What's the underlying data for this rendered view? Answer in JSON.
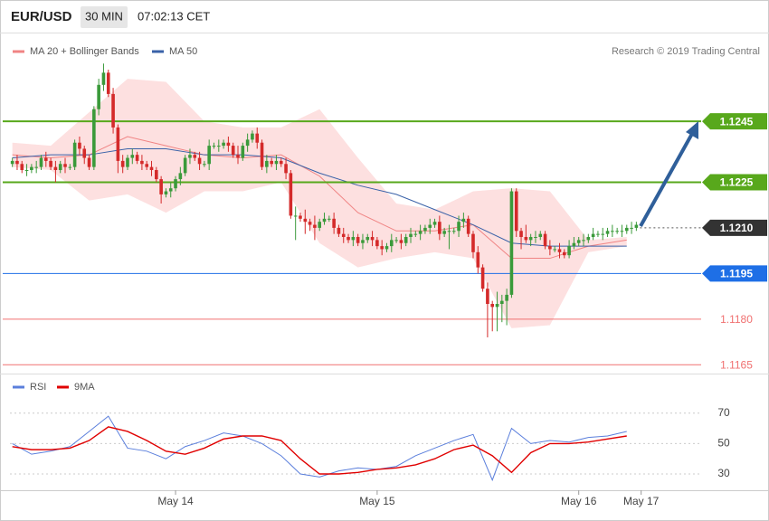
{
  "header": {
    "symbol": "EUR/USD",
    "interval": "30 MIN",
    "time": "07:02:13 CET"
  },
  "credit": "Research © 2019 Trading Central",
  "chart_data": [
    {
      "type": "candlestick",
      "xlim": [
        -0.5,
        143.5
      ],
      "ylim": [
        1.1163,
        1.1273
      ],
      "up_color": "#3a9a3a",
      "down_color": "#d42a2a",
      "ohlc": [
        [
          1.1231,
          1.1233,
          1.123,
          1.1232
        ],
        [
          1.1232,
          1.1234,
          1.1229,
          1.1231
        ],
        [
          1.1231,
          1.1232,
          1.1228,
          1.1229
        ],
        [
          1.1229,
          1.1231,
          1.1227,
          1.1229
        ],
        [
          1.1229,
          1.1231,
          1.1228,
          1.123
        ],
        [
          1.123,
          1.1232,
          1.1228,
          1.123
        ],
        [
          1.123,
          1.1234,
          1.1229,
          1.1233
        ],
        [
          1.1233,
          1.1235,
          1.123,
          1.1232
        ],
        [
          1.1232,
          1.1233,
          1.1229,
          1.123
        ],
        [
          1.123,
          1.1232,
          1.1225,
          1.1229
        ],
        [
          1.1229,
          1.1232,
          1.1228,
          1.1231
        ],
        [
          1.1231,
          1.1233,
          1.1228,
          1.123
        ],
        [
          1.123,
          1.1231,
          1.1229,
          1.123
        ],
        [
          1.123,
          1.1239,
          1.1229,
          1.1238
        ],
        [
          1.1238,
          1.124,
          1.1234,
          1.1236
        ],
        [
          1.1236,
          1.1237,
          1.1231,
          1.1233
        ],
        [
          1.1233,
          1.1234,
          1.1229,
          1.123
        ],
        [
          1.123,
          1.125,
          1.1229,
          1.1249
        ],
        [
          1.1249,
          1.1259,
          1.1247,
          1.1257
        ],
        [
          1.1257,
          1.1264,
          1.1255,
          1.1261
        ],
        [
          1.1261,
          1.1262,
          1.1253,
          1.1254
        ],
        [
          1.1254,
          1.1256,
          1.1241,
          1.1243
        ],
        [
          1.1243,
          1.1244,
          1.1228,
          1.1232
        ],
        [
          1.1232,
          1.1234,
          1.1228,
          1.123
        ],
        [
          1.123,
          1.1234,
          1.1229,
          1.1233
        ],
        [
          1.1233,
          1.1236,
          1.1231,
          1.1234
        ],
        [
          1.1234,
          1.1235,
          1.1231,
          1.1232
        ],
        [
          1.1232,
          1.1234,
          1.1229,
          1.1231
        ],
        [
          1.1231,
          1.1232,
          1.1229,
          1.123
        ],
        [
          1.123,
          1.1232,
          1.1227,
          1.1229
        ],
        [
          1.1229,
          1.123,
          1.1225,
          1.1226
        ],
        [
          1.1226,
          1.1227,
          1.1218,
          1.1221
        ],
        [
          1.1221,
          1.1223,
          1.122,
          1.1222
        ],
        [
          1.1222,
          1.1225,
          1.122,
          1.1223
        ],
        [
          1.1223,
          1.1227,
          1.1222,
          1.1226
        ],
        [
          1.1226,
          1.123,
          1.1224,
          1.1228
        ],
        [
          1.1228,
          1.1234,
          1.1227,
          1.1233
        ],
        [
          1.1233,
          1.1236,
          1.1231,
          1.1234
        ],
        [
          1.1234,
          1.1235,
          1.1232,
          1.1233
        ],
        [
          1.1233,
          1.1235,
          1.1229,
          1.1231
        ],
        [
          1.1231,
          1.1232,
          1.123,
          1.1231
        ],
        [
          1.1231,
          1.1239,
          1.1229,
          1.1237
        ],
        [
          1.1237,
          1.1238,
          1.1236,
          1.1237
        ],
        [
          1.1237,
          1.1239,
          1.1235,
          1.1237
        ],
        [
          1.1237,
          1.1239,
          1.1236,
          1.1238
        ],
        [
          1.1238,
          1.124,
          1.1235,
          1.1237
        ],
        [
          1.1237,
          1.1238,
          1.1233,
          1.1234
        ],
        [
          1.1234,
          1.1237,
          1.1231,
          1.1233
        ],
        [
          1.1233,
          1.1238,
          1.1232,
          1.1237
        ],
        [
          1.1237,
          1.1241,
          1.1235,
          1.1239
        ],
        [
          1.1239,
          1.1242,
          1.1238,
          1.1241
        ],
        [
          1.1241,
          1.1243,
          1.1236,
          1.1238
        ],
        [
          1.1238,
          1.1239,
          1.1229,
          1.123
        ],
        [
          1.123,
          1.1234,
          1.1228,
          1.1232
        ],
        [
          1.1232,
          1.1233,
          1.123,
          1.1231
        ],
        [
          1.1231,
          1.1234,
          1.1229,
          1.1232
        ],
        [
          1.1232,
          1.1233,
          1.123,
          1.1231
        ],
        [
          1.1231,
          1.1233,
          1.1226,
          1.1228
        ],
        [
          1.1228,
          1.1229,
          1.1213,
          1.1214
        ],
        [
          1.1214,
          1.1217,
          1.1206,
          1.1214
        ],
        [
          1.1214,
          1.1215,
          1.1212,
          1.1213
        ],
        [
          1.1213,
          1.1216,
          1.1208,
          1.1212
        ],
        [
          1.1212,
          1.1213,
          1.1209,
          1.1211
        ],
        [
          1.1211,
          1.1214,
          1.1206,
          1.121
        ],
        [
          1.121,
          1.1213,
          1.1209,
          1.1212
        ],
        [
          1.1212,
          1.1215,
          1.1211,
          1.1213
        ],
        [
          1.1213,
          1.1214,
          1.1212,
          1.1213
        ],
        [
          1.1213,
          1.1215,
          1.1208,
          1.121
        ],
        [
          1.121,
          1.1211,
          1.1207,
          1.1208
        ],
        [
          1.1208,
          1.121,
          1.1205,
          1.1207
        ],
        [
          1.1207,
          1.1208,
          1.1205,
          1.1206
        ],
        [
          1.1206,
          1.1209,
          1.1204,
          1.1207
        ],
        [
          1.1207,
          1.1208,
          1.1204,
          1.1205
        ],
        [
          1.1205,
          1.1208,
          1.1203,
          1.1206
        ],
        [
          1.1206,
          1.1208,
          1.1205,
          1.1207
        ],
        [
          1.1207,
          1.1209,
          1.1204,
          1.1206
        ],
        [
          1.1206,
          1.1207,
          1.1203,
          1.1204
        ],
        [
          1.1204,
          1.1206,
          1.1201,
          1.1203
        ],
        [
          1.1203,
          1.1205,
          1.1202,
          1.1204
        ],
        [
          1.1204,
          1.1208,
          1.1202,
          1.1206
        ],
        [
          1.1206,
          1.1207,
          1.1205,
          1.1206
        ],
        [
          1.1206,
          1.1208,
          1.1203,
          1.1205
        ],
        [
          1.1205,
          1.1208,
          1.1204,
          1.1207
        ],
        [
          1.1207,
          1.121,
          1.1205,
          1.1208
        ],
        [
          1.1208,
          1.1209,
          1.1207,
          1.1208
        ],
        [
          1.1208,
          1.1211,
          1.1206,
          1.1209
        ],
        [
          1.1209,
          1.1211,
          1.1208,
          1.121
        ],
        [
          1.121,
          1.1213,
          1.1208,
          1.1211
        ],
        [
          1.1211,
          1.1213,
          1.121,
          1.1212
        ],
        [
          1.1212,
          1.1214,
          1.1206,
          1.1208
        ],
        [
          1.1208,
          1.121,
          1.1207,
          1.1209
        ],
        [
          1.1209,
          1.1211,
          1.1203,
          1.1209
        ],
        [
          1.1209,
          1.121,
          1.1208,
          1.1209
        ],
        [
          1.1209,
          1.1214,
          1.1207,
          1.1212
        ],
        [
          1.1212,
          1.1215,
          1.121,
          1.1213
        ],
        [
          1.1213,
          1.1214,
          1.1207,
          1.1208
        ],
        [
          1.1208,
          1.1209,
          1.12,
          1.1202
        ],
        [
          1.1202,
          1.1204,
          1.1195,
          1.1197
        ],
        [
          1.1197,
          1.1198,
          1.1189,
          1.119
        ],
        [
          1.119,
          1.1192,
          1.1174,
          1.1185
        ],
        [
          1.1185,
          1.1186,
          1.1176,
          1.1184
        ],
        [
          1.1184,
          1.1189,
          1.1176,
          1.1185
        ],
        [
          1.1185,
          1.1188,
          1.1179,
          1.1186
        ],
        [
          1.1186,
          1.119,
          1.1178,
          1.1188
        ],
        [
          1.1188,
          1.1223,
          1.1187,
          1.1222
        ],
        [
          1.1222,
          1.1223,
          1.1207,
          1.1209
        ],
        [
          1.1209,
          1.121,
          1.1203,
          1.1207
        ],
        [
          1.1207,
          1.1211,
          1.1205,
          1.1206
        ],
        [
          1.1206,
          1.1208,
          1.1204,
          1.1207
        ],
        [
          1.1207,
          1.1209,
          1.1205,
          1.1207
        ],
        [
          1.1207,
          1.1209,
          1.1206,
          1.1208
        ],
        [
          1.1208,
          1.1209,
          1.1203,
          1.1204
        ],
        [
          1.1204,
          1.1206,
          1.1201,
          1.1203
        ],
        [
          1.1203,
          1.1204,
          1.1202,
          1.1203
        ],
        [
          1.1203,
          1.1205,
          1.12,
          1.1202
        ],
        [
          1.1202,
          1.1203,
          1.12,
          1.1201
        ],
        [
          1.1201,
          1.1206,
          1.12,
          1.1204
        ],
        [
          1.1204,
          1.1207,
          1.1203,
          1.1205
        ],
        [
          1.1205,
          1.1207,
          1.1204,
          1.1206
        ],
        [
          1.1206,
          1.1208,
          1.1204,
          1.1206
        ],
        [
          1.1206,
          1.1208,
          1.1205,
          1.1207
        ],
        [
          1.1207,
          1.121,
          1.1206,
          1.1208
        ],
        [
          1.1208,
          1.1209,
          1.1207,
          1.1208
        ],
        [
          1.1208,
          1.121,
          1.1206,
          1.1208
        ],
        [
          1.1208,
          1.121,
          1.1207,
          1.1209
        ],
        [
          1.1209,
          1.1211,
          1.1207,
          1.1209
        ],
        [
          1.1209,
          1.121,
          1.1208,
          1.1209
        ],
        [
          1.1209,
          1.1211,
          1.1207,
          1.1209
        ],
        [
          1.1209,
          1.1211,
          1.1208,
          1.121
        ],
        [
          1.121,
          1.1212,
          1.1208,
          1.121
        ],
        [
          1.121,
          1.1212,
          1.1209,
          1.1211
        ]
      ],
      "overlays": [
        {
          "name": "MA 20 + Bollinger Bands",
          "color": "#f08484",
          "band_color": "#fde0e0",
          "x": [
            0,
            8,
            16,
            24,
            32,
            40,
            48,
            56,
            64,
            72,
            80,
            88,
            96,
            104,
            112,
            120,
            128
          ],
          "values": [
            1.1234,
            1.1233,
            1.1234,
            1.124,
            1.1237,
            1.1234,
            1.1233,
            1.1234,
            1.1227,
            1.1215,
            1.1209,
            1.1209,
            1.1211,
            1.12,
            1.12,
            1.1204,
            1.1206
          ],
          "upper": [
            1.1238,
            1.1237,
            1.1248,
            1.1259,
            1.1258,
            1.1245,
            1.1243,
            1.1243,
            1.1249,
            1.1233,
            1.1218,
            1.1216,
            1.1222,
            1.1223,
            1.1222,
            1.1206,
            1.1207
          ],
          "lower": [
            1.123,
            1.1229,
            1.1219,
            1.1221,
            1.1215,
            1.1222,
            1.1222,
            1.1225,
            1.1205,
            1.1197,
            1.12,
            1.1202,
            1.12,
            1.1177,
            1.1178,
            1.1202,
            1.1204
          ]
        },
        {
          "name": "MA 50",
          "color": "#3a62a8",
          "x": [
            0,
            8,
            16,
            24,
            32,
            40,
            48,
            56,
            64,
            72,
            80,
            88,
            96,
            104,
            112,
            120,
            128
          ],
          "values": [
            1.1233,
            1.1234,
            1.1234,
            1.1236,
            1.1236,
            1.1234,
            1.1234,
            1.1233,
            1.1228,
            1.1224,
            1.1221,
            1.1216,
            1.1211,
            1.1205,
            1.1204,
            1.1204,
            1.1204
          ]
        }
      ],
      "levels": [
        {
          "value": 1.1245,
          "label": "1.1245",
          "color": "#58a81c",
          "width": 2,
          "line": "solid",
          "boxed": true
        },
        {
          "value": 1.1225,
          "label": "1.1225",
          "color": "#58a81c",
          "width": 2,
          "line": "solid",
          "boxed": true
        },
        {
          "value": 1.121,
          "label": "1.1210",
          "color": "#333333",
          "width": 1,
          "line": "dotted",
          "boxed": true
        },
        {
          "value": 1.1195,
          "label": "1.1195",
          "color": "#1e6fe6",
          "width": 1,
          "line": "solid",
          "boxed": true
        },
        {
          "value": 1.118,
          "label": "1.1180",
          "color": "#f07070",
          "width": 1,
          "line": "solid",
          "boxed": false
        },
        {
          "value": 1.1165,
          "label": "1.1165",
          "color": "#f07070",
          "width": 1,
          "line": "solid",
          "boxed": false
        }
      ]
    },
    {
      "type": "line",
      "xlim": [
        -0.5,
        143.5
      ],
      "ylim": [
        17.5,
        80
      ],
      "yticks": [
        30,
        50,
        70
      ],
      "grid": true,
      "xticks": [
        {
          "value": 34,
          "label": "May 14"
        },
        {
          "value": 76,
          "label": "May 15"
        },
        {
          "value": 118,
          "label": "May 16"
        },
        {
          "value": 131,
          "label": "May 17"
        }
      ],
      "series": [
        {
          "name": "RSI",
          "color": "#5b7fdc",
          "x": [
            0,
            4,
            8,
            12,
            16,
            20,
            24,
            28,
            32,
            36,
            40,
            44,
            48,
            52,
            56,
            60,
            64,
            68,
            72,
            76,
            80,
            84,
            88,
            92,
            96,
            100,
            104,
            108,
            112,
            116,
            120,
            124,
            128
          ],
          "values": [
            50,
            43,
            45,
            48,
            58,
            68,
            47,
            45,
            40,
            48,
            52,
            57,
            55,
            50,
            42,
            30,
            28,
            32,
            34,
            33,
            35,
            42,
            47,
            52,
            56,
            26,
            60,
            50,
            52,
            51,
            54,
            55,
            58
          ]
        },
        {
          "name": "9MA",
          "color": "#e00000",
          "x": [
            0,
            4,
            8,
            12,
            16,
            20,
            24,
            28,
            32,
            36,
            40,
            44,
            48,
            52,
            56,
            60,
            64,
            68,
            72,
            76,
            80,
            84,
            88,
            92,
            96,
            100,
            104,
            108,
            112,
            116,
            120,
            124,
            128
          ],
          "values": [
            48,
            46,
            46,
            47,
            52,
            61,
            58,
            52,
            45,
            43,
            47,
            53,
            55,
            55,
            52,
            40,
            30,
            30,
            31,
            33,
            34,
            36,
            40,
            46,
            49,
            42,
            31,
            44,
            50,
            50,
            51,
            53,
            55
          ]
        }
      ]
    }
  ]
}
